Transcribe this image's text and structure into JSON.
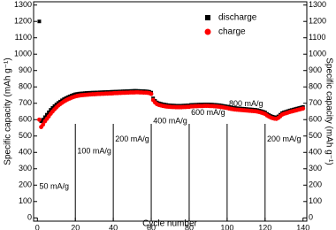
{
  "chart_data": {
    "type": "scatter",
    "xlabel": "Cycle number",
    "ylabel": "Specific capacity (mAh g⁻¹)",
    "y2label": "Specific capacity (mAh g⁻¹)",
    "xlim": [
      -2,
      142
    ],
    "xticks": [
      0,
      20,
      40,
      60,
      80,
      100,
      120,
      140
    ],
    "ylim": [
      -20,
      1320
    ],
    "yticks": [
      0,
      100,
      200,
      300,
      400,
      500,
      600,
      700,
      800,
      900,
      1000,
      1100,
      1200,
      1300
    ],
    "y2lim": [
      -20,
      1320
    ],
    "y2ticks": [
      0,
      100,
      200,
      300,
      400,
      500,
      600,
      700,
      800,
      900,
      1000,
      1100,
      1200,
      1300
    ],
    "legend": "upper right",
    "x": [
      1,
      2,
      3,
      4,
      5,
      6,
      7,
      8,
      9,
      10,
      11,
      12,
      13,
      14,
      15,
      16,
      17,
      18,
      19,
      20,
      21,
      22,
      23,
      24,
      25,
      26,
      27,
      28,
      29,
      30,
      31,
      32,
      33,
      34,
      35,
      36,
      37,
      38,
      39,
      40,
      41,
      42,
      43,
      44,
      45,
      46,
      47,
      48,
      49,
      50,
      51,
      52,
      53,
      54,
      55,
      56,
      57,
      58,
      59,
      60,
      61,
      62,
      63,
      64,
      65,
      66,
      67,
      68,
      69,
      70,
      71,
      72,
      73,
      74,
      75,
      76,
      77,
      78,
      79,
      80,
      81,
      82,
      83,
      84,
      85,
      86,
      87,
      88,
      89,
      90,
      91,
      92,
      93,
      94,
      95,
      96,
      97,
      98,
      99,
      100,
      101,
      102,
      103,
      104,
      105,
      106,
      107,
      108,
      109,
      110,
      111,
      112,
      113,
      114,
      115,
      116,
      117,
      118,
      119,
      120,
      121,
      122,
      123,
      124,
      125,
      126,
      127,
      128,
      129,
      130,
      131,
      132,
      133,
      134,
      135,
      136,
      137,
      138,
      139,
      140
    ],
    "series": [
      {
        "name": "discharge",
        "color": "#000000",
        "marker": "square",
        "values": [
          1200,
          590,
          600,
          615,
          630,
          645,
          660,
          672,
          683,
          693,
          702,
          710,
          718,
          725,
          731,
          737,
          742,
          747,
          751,
          755,
          757,
          759,
          760,
          761,
          762,
          763,
          764,
          764,
          765,
          765,
          766,
          766,
          767,
          767,
          768,
          768,
          769,
          769,
          770,
          770,
          771,
          771,
          772,
          772,
          773,
          773,
          774,
          774,
          775,
          775,
          776,
          776,
          775,
          775,
          774,
          774,
          773,
          772,
          770,
          765,
          730,
          715,
          705,
          700,
          697,
          694,
          692,
          690,
          688,
          687,
          686,
          686,
          685,
          685,
          685,
          685,
          686,
          686,
          687,
          687,
          690,
          690,
          691,
          691,
          692,
          692,
          692,
          693,
          693,
          693,
          692,
          692,
          691,
          690,
          689,
          688,
          686,
          684,
          682,
          680,
          677,
          675,
          673,
          671,
          670,
          669,
          668,
          667,
          666,
          665,
          664,
          663,
          662,
          661,
          660,
          658,
          655,
          652,
          648,
          644,
          635,
          628,
          622,
          618,
          615,
          614,
          620,
          630,
          640,
          645,
          648,
          652,
          656,
          659,
          662,
          665,
          668,
          671,
          674,
          677
        ]
      },
      {
        "name": "charge",
        "color": "#ff0000",
        "marker": "circle",
        "values": [
          600,
          555,
          570,
          590,
          605,
          620,
          636,
          650,
          663,
          675,
          686,
          695,
          703,
          711,
          718,
          724,
          729,
          734,
          738,
          742,
          745,
          747,
          749,
          750,
          751,
          752,
          753,
          754,
          755,
          755,
          756,
          757,
          757,
          758,
          758,
          759,
          759,
          760,
          760,
          761,
          762,
          762,
          763,
          763,
          764,
          764,
          765,
          765,
          766,
          766,
          766,
          767,
          767,
          766,
          766,
          765,
          765,
          764,
          762,
          757,
          720,
          705,
          695,
          690,
          687,
          684,
          682,
          680,
          679,
          678,
          677,
          677,
          676,
          676,
          676,
          676,
          677,
          677,
          678,
          678,
          681,
          681,
          682,
          682,
          683,
          683,
          683,
          684,
          684,
          684,
          683,
          683,
          682,
          681,
          680,
          679,
          677,
          675,
          673,
          671,
          668,
          666,
          664,
          662,
          661,
          660,
          659,
          658,
          657,
          656,
          655,
          654,
          653,
          652,
          651,
          649,
          646,
          643,
          639,
          635,
          626,
          619,
          613,
          609,
          606,
          605,
          611,
          621,
          631,
          636,
          639,
          643,
          647,
          650,
          653,
          656,
          659,
          662,
          665,
          668
        ]
      }
    ],
    "vlines": [
      20,
      40,
      60,
      80,
      100,
      120
    ],
    "annotations": [
      {
        "text": "50 mA/g",
        "x": 1,
        "y": 190
      },
      {
        "text": "100 mA/g",
        "x": 21,
        "y": 405
      },
      {
        "text": "200 mA/g",
        "x": 41,
        "y": 480
      },
      {
        "text": "400 mA/g",
        "x": 61,
        "y": 590
      },
      {
        "text": "600 mA/g",
        "x": 81,
        "y": 640
      },
      {
        "text": "800 mA/g",
        "x": 101,
        "y": 695
      },
      {
        "text": "200 mA/g",
        "x": 121,
        "y": 480
      }
    ]
  }
}
